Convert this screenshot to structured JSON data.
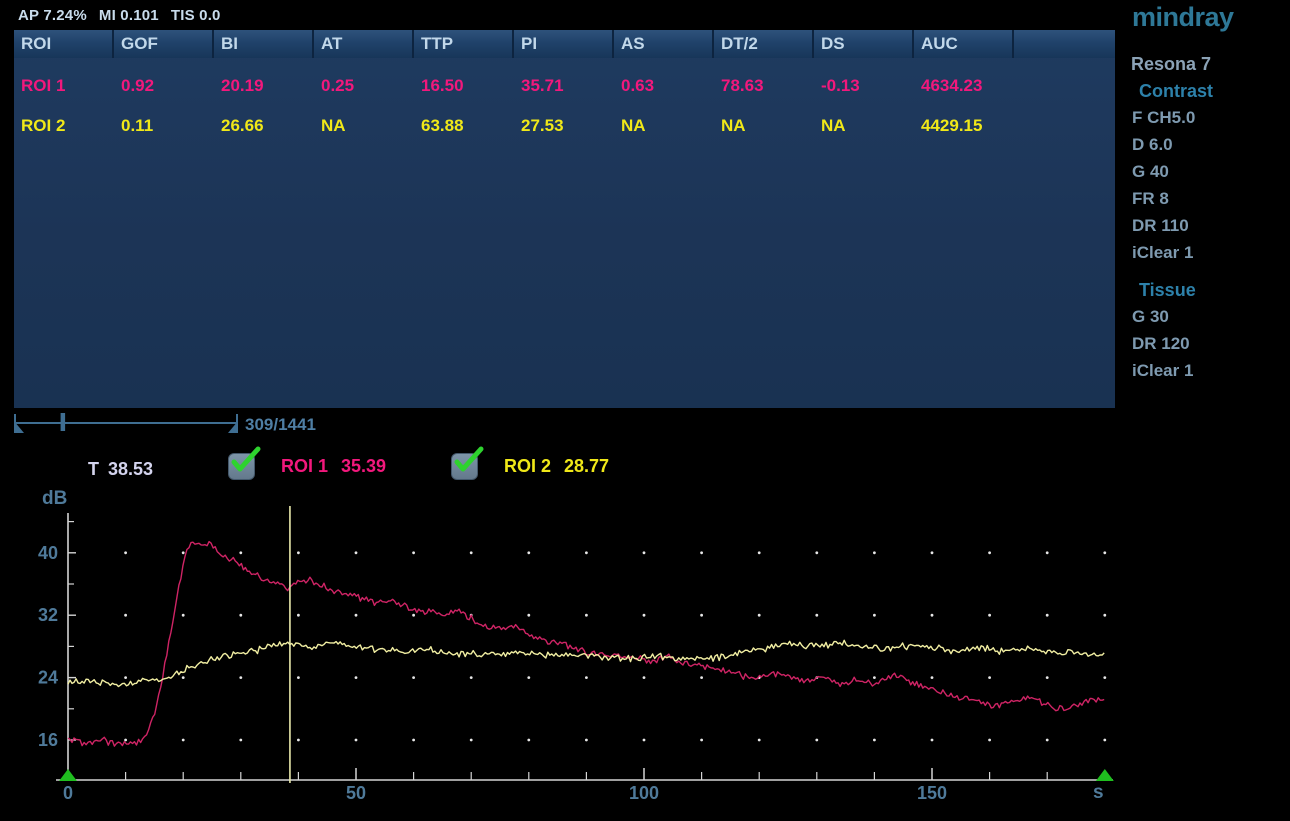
{
  "status_bar": {
    "ap": "AP 7.24%",
    "mi": "MI 0.101",
    "tis": "TIS 0.0"
  },
  "table": {
    "headers": [
      "ROI",
      "GOF",
      "BI",
      "AT",
      "TTP",
      "PI",
      "AS",
      "DT/2",
      "DS",
      "AUC"
    ],
    "rows": [
      {
        "values": [
          "ROI 1",
          "0.92",
          "20.19",
          "0.25",
          "16.50",
          "35.71",
          "0.63",
          "78.63",
          "-0.13",
          "4634.23"
        ],
        "color": "#f2187c"
      },
      {
        "values": [
          "ROI 2",
          "0.11",
          "26.66",
          "NA",
          "63.88",
          "27.53",
          "NA",
          "NA",
          "NA",
          "4429.15"
        ],
        "color": "#f0e818"
      }
    ]
  },
  "sidebar": {
    "logo": "mindray",
    "model": "Resona 7",
    "sections": [
      {
        "title": "Contrast",
        "params": [
          "F CH5.0",
          "D 6.0",
          "G 40",
          "FR 8",
          "DR 110",
          "iClear 1"
        ]
      },
      {
        "title": "Tissue",
        "params": [
          "G 30",
          "DR 120",
          "iClear 1"
        ]
      }
    ]
  },
  "cine": {
    "frame": 309,
    "total": 1441,
    "counter": "309/1441"
  },
  "legend": {
    "time_label": "T",
    "time_value": "38.53",
    "items": [
      {
        "label": "ROI 1",
        "value": "35.39",
        "checked": true,
        "color": "#f2187c"
      },
      {
        "label": "ROI 2",
        "value": "28.77",
        "checked": true,
        "color": "#f0e818"
      }
    ]
  },
  "chart_data": {
    "type": "line",
    "title": "Time-intensity curves (contrast quantification)",
    "xlabel": "s",
    "ylabel": "dB",
    "x_range": [
      0,
      180
    ],
    "y_axis": {
      "labeled_ticks": [
        16,
        24,
        32,
        40
      ],
      "minor_ticks": [
        20,
        28,
        36,
        44
      ],
      "bottom_value": 10.9,
      "top_value": 45
    },
    "x_axis": {
      "labeled_ticks": [
        0,
        50,
        100,
        150
      ],
      "minor_tick_step": 10
    },
    "grid": {
      "dot_x_step": 10,
      "dot_y_values": [
        16,
        24,
        32,
        40
      ]
    },
    "cursor_t": 38.53,
    "range_markers_t": [
      0,
      180
    ],
    "legend_position": "top",
    "series": [
      {
        "name": "ROI 1",
        "color": "#cf2465",
        "noise": 0.5,
        "keypoints": [
          [
            0,
            16.0
          ],
          [
            3,
            15.6
          ],
          [
            6,
            15.9
          ],
          [
            9,
            15.5
          ],
          [
            12,
            15.7
          ],
          [
            13.5,
            16.3
          ],
          [
            15,
            19.5
          ],
          [
            16.5,
            24.5
          ],
          [
            18,
            30.5
          ],
          [
            19.5,
            36.5
          ],
          [
            20.5,
            40.0
          ],
          [
            21.5,
            41.6
          ],
          [
            23,
            41.0
          ],
          [
            24.5,
            41.2
          ],
          [
            26,
            40.3
          ],
          [
            28,
            39.3
          ],
          [
            30,
            38.3
          ],
          [
            32,
            37.4
          ],
          [
            34,
            36.6
          ],
          [
            36,
            36.2
          ],
          [
            38,
            35.5
          ],
          [
            40,
            36.3
          ],
          [
            42,
            36.6
          ],
          [
            44,
            35.8
          ],
          [
            46,
            35.1
          ],
          [
            48,
            34.9
          ],
          [
            50,
            34.4
          ],
          [
            53,
            33.7
          ],
          [
            56,
            33.9
          ],
          [
            59,
            33.0
          ],
          [
            62,
            32.5
          ],
          [
            65,
            32.0
          ],
          [
            68,
            32.6
          ],
          [
            70,
            31.6
          ],
          [
            72,
            30.6
          ],
          [
            75,
            30.2
          ],
          [
            78,
            30.6
          ],
          [
            80,
            29.6
          ],
          [
            83,
            28.8
          ],
          [
            86,
            28.3
          ],
          [
            89,
            27.5
          ],
          [
            92,
            26.9
          ],
          [
            95,
            27.1
          ],
          [
            98,
            26.5
          ],
          [
            101,
            26.1
          ],
          [
            104,
            26.7
          ],
          [
            107,
            25.9
          ],
          [
            110,
            25.5
          ],
          [
            113,
            25.1
          ],
          [
            116,
            24.5
          ],
          [
            119,
            23.9
          ],
          [
            122,
            24.5
          ],
          [
            125,
            24.1
          ],
          [
            128,
            23.5
          ],
          [
            131,
            23.9
          ],
          [
            134,
            23.3
          ],
          [
            137,
            23.7
          ],
          [
            140,
            23.1
          ],
          [
            143,
            24.3
          ],
          [
            146,
            23.5
          ],
          [
            149,
            22.7
          ],
          [
            152,
            22.1
          ],
          [
            155,
            21.5
          ],
          [
            158,
            21.1
          ],
          [
            161,
            20.3
          ],
          [
            164,
            20.9
          ],
          [
            167,
            21.5
          ],
          [
            170,
            20.5
          ],
          [
            173,
            19.9
          ],
          [
            176,
            20.7
          ],
          [
            179,
            21.3
          ],
          [
            180,
            21.2
          ]
        ]
      },
      {
        "name": "ROI 2",
        "color": "#f1eea2",
        "noise": 0.55,
        "keypoints": [
          [
            0,
            23.3
          ],
          [
            4,
            23.7
          ],
          [
            8,
            23.1
          ],
          [
            12,
            23.5
          ],
          [
            16,
            23.6
          ],
          [
            19,
            24.6
          ],
          [
            22,
            25.6
          ],
          [
            25,
            26.4
          ],
          [
            28,
            27.0
          ],
          [
            31,
            27.4
          ],
          [
            34,
            27.7
          ],
          [
            37,
            28.4
          ],
          [
            40,
            28.3
          ],
          [
            43,
            28.0
          ],
          [
            46,
            28.4
          ],
          [
            50,
            28.0
          ],
          [
            54,
            27.7
          ],
          [
            58,
            27.4
          ],
          [
            62,
            27.6
          ],
          [
            66,
            27.1
          ],
          [
            70,
            27.0
          ],
          [
            74,
            26.8
          ],
          [
            78,
            27.2
          ],
          [
            82,
            26.8
          ],
          [
            86,
            27.0
          ],
          [
            90,
            26.9
          ],
          [
            94,
            26.6
          ],
          [
            98,
            26.4
          ],
          [
            102,
            26.8
          ],
          [
            106,
            26.3
          ],
          [
            110,
            26.5
          ],
          [
            114,
            26.7
          ],
          [
            118,
            27.3
          ],
          [
            122,
            27.9
          ],
          [
            126,
            28.3
          ],
          [
            130,
            28.0
          ],
          [
            134,
            28.4
          ],
          [
            138,
            27.8
          ],
          [
            142,
            27.7
          ],
          [
            146,
            28.0
          ],
          [
            150,
            27.9
          ],
          [
            154,
            27.5
          ],
          [
            158,
            27.9
          ],
          [
            162,
            27.4
          ],
          [
            166,
            27.7
          ],
          [
            170,
            27.2
          ],
          [
            174,
            27.4
          ],
          [
            178,
            27.0
          ],
          [
            180,
            26.9
          ]
        ]
      }
    ]
  },
  "colors": {
    "panel_bg": "#1c3456",
    "header_text": "#c2d8ea",
    "status_text": "#c9dcec",
    "roi1": "#f2187c",
    "roi2": "#f0e818",
    "curve1": "#cf2465",
    "curve2": "#f1eea2",
    "axis_text": "#4f7a9a",
    "axis_line": "#d4d4d4",
    "cursor_line": "#e9e9ab",
    "green_marker": "#1fbe1f",
    "check_green": "#2ed32e",
    "time_text": "#d4d4ee",
    "cine_bar": "#3f6e92",
    "cine_text": "#4e7ea4",
    "logo": "#2e7897",
    "sidebar_title": "#2d81aa",
    "sidebar_param": "#7e9ab0",
    "sidebar_model": "#8ba2b6"
  }
}
